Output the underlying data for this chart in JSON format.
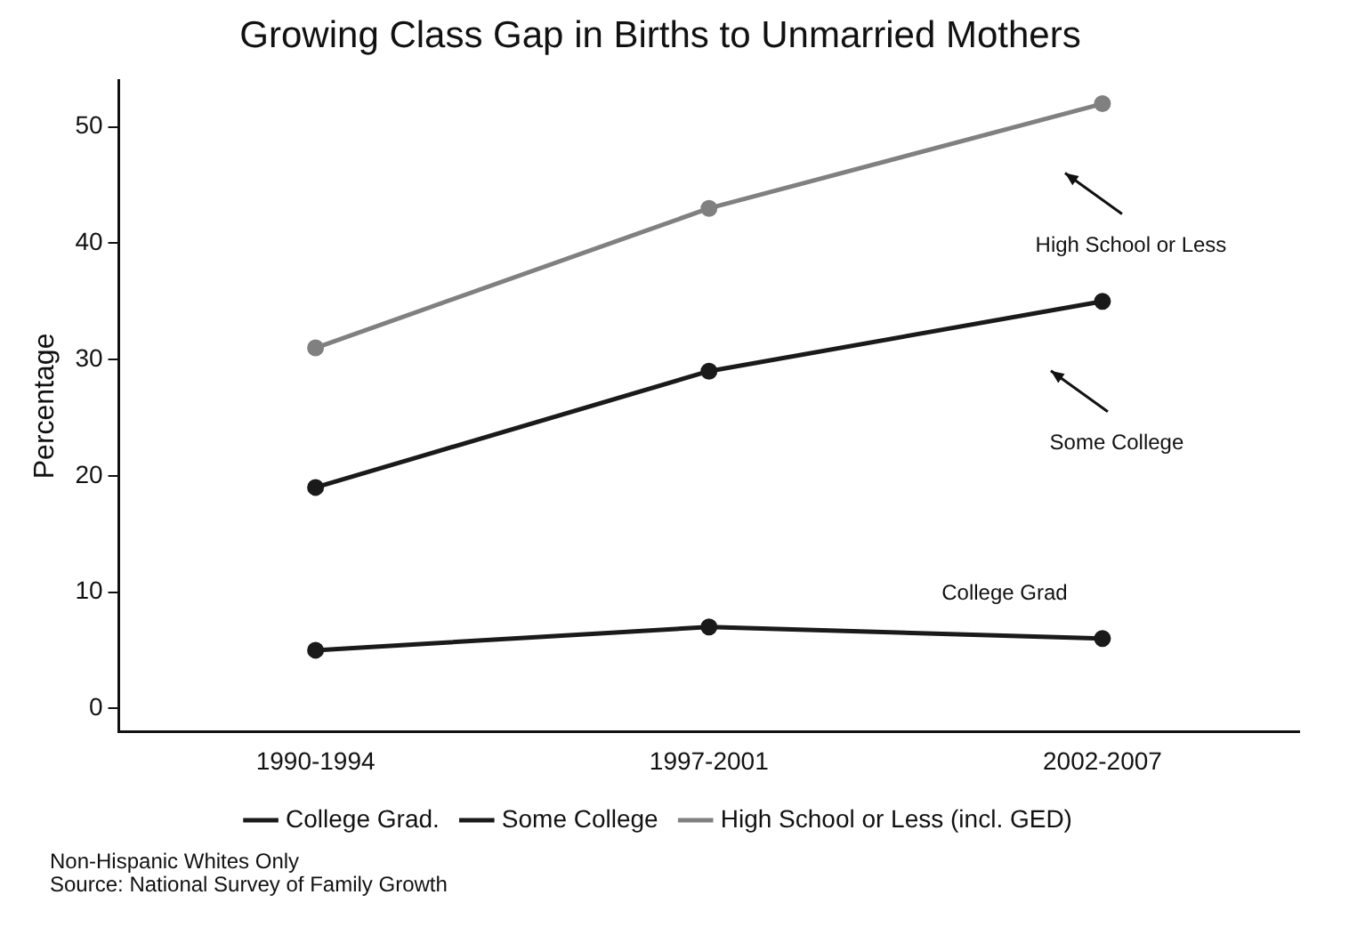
{
  "chart_data": {
    "type": "line",
    "title": "Growing Class Gap in Births to Unmarried Mothers",
    "ylabel": "Percentage",
    "categories": [
      "1990-1994",
      "1997-2001",
      "2002-2007"
    ],
    "ylim": [
      -2,
      54
    ],
    "yticks": [
      0,
      10,
      20,
      30,
      40,
      50
    ],
    "series": [
      {
        "name": "College Grad.",
        "color": "#1a1a1a",
        "values": [
          5,
          7,
          6
        ]
      },
      {
        "name": "Some College",
        "color": "#1a1a1a",
        "values": [
          19,
          29,
          35
        ]
      },
      {
        "name": "High School or Less (incl. GED)",
        "color": "#808080",
        "values": [
          31,
          43,
          52
        ]
      }
    ],
    "marker": "circle",
    "line_style": "solid",
    "grid": false,
    "legend": "bottom",
    "annotations": [
      "College Grad",
      "Some College",
      "High School or Less",
      "Non-Hispanic Whites Only",
      "Source: National Survey of Family Growth"
    ]
  }
}
